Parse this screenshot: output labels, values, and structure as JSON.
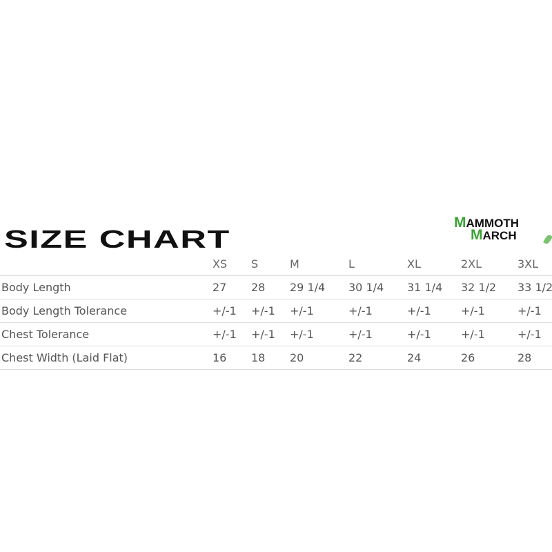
{
  "title": "SIZE CHART",
  "logo": {
    "line1": "MAMMOTH",
    "line2": "MARCH",
    "accent": "#3aa335"
  },
  "columns": [
    "",
    "XS",
    "S",
    "M",
    "L",
    "XL",
    "2XL",
    "3XL"
  ],
  "rows": [
    [
      "Body Length",
      "27",
      "28",
      "29 1/4",
      "30 1/4",
      "31 1/4",
      "32 1/2",
      "33 1/2"
    ],
    [
      "Body Length Tolerance",
      "+/-1",
      "+/-1",
      "+/-1",
      "+/-1",
      "+/-1",
      "+/-1",
      "+/-1"
    ],
    [
      "Chest Tolerance",
      "+/-1",
      "+/-1",
      "+/-1",
      "+/-1",
      "+/-1",
      "+/-1",
      "+/-1"
    ],
    [
      "Chest Width (Laid Flat)",
      "16",
      "18",
      "20",
      "22",
      "24",
      "26",
      "28"
    ]
  ]
}
